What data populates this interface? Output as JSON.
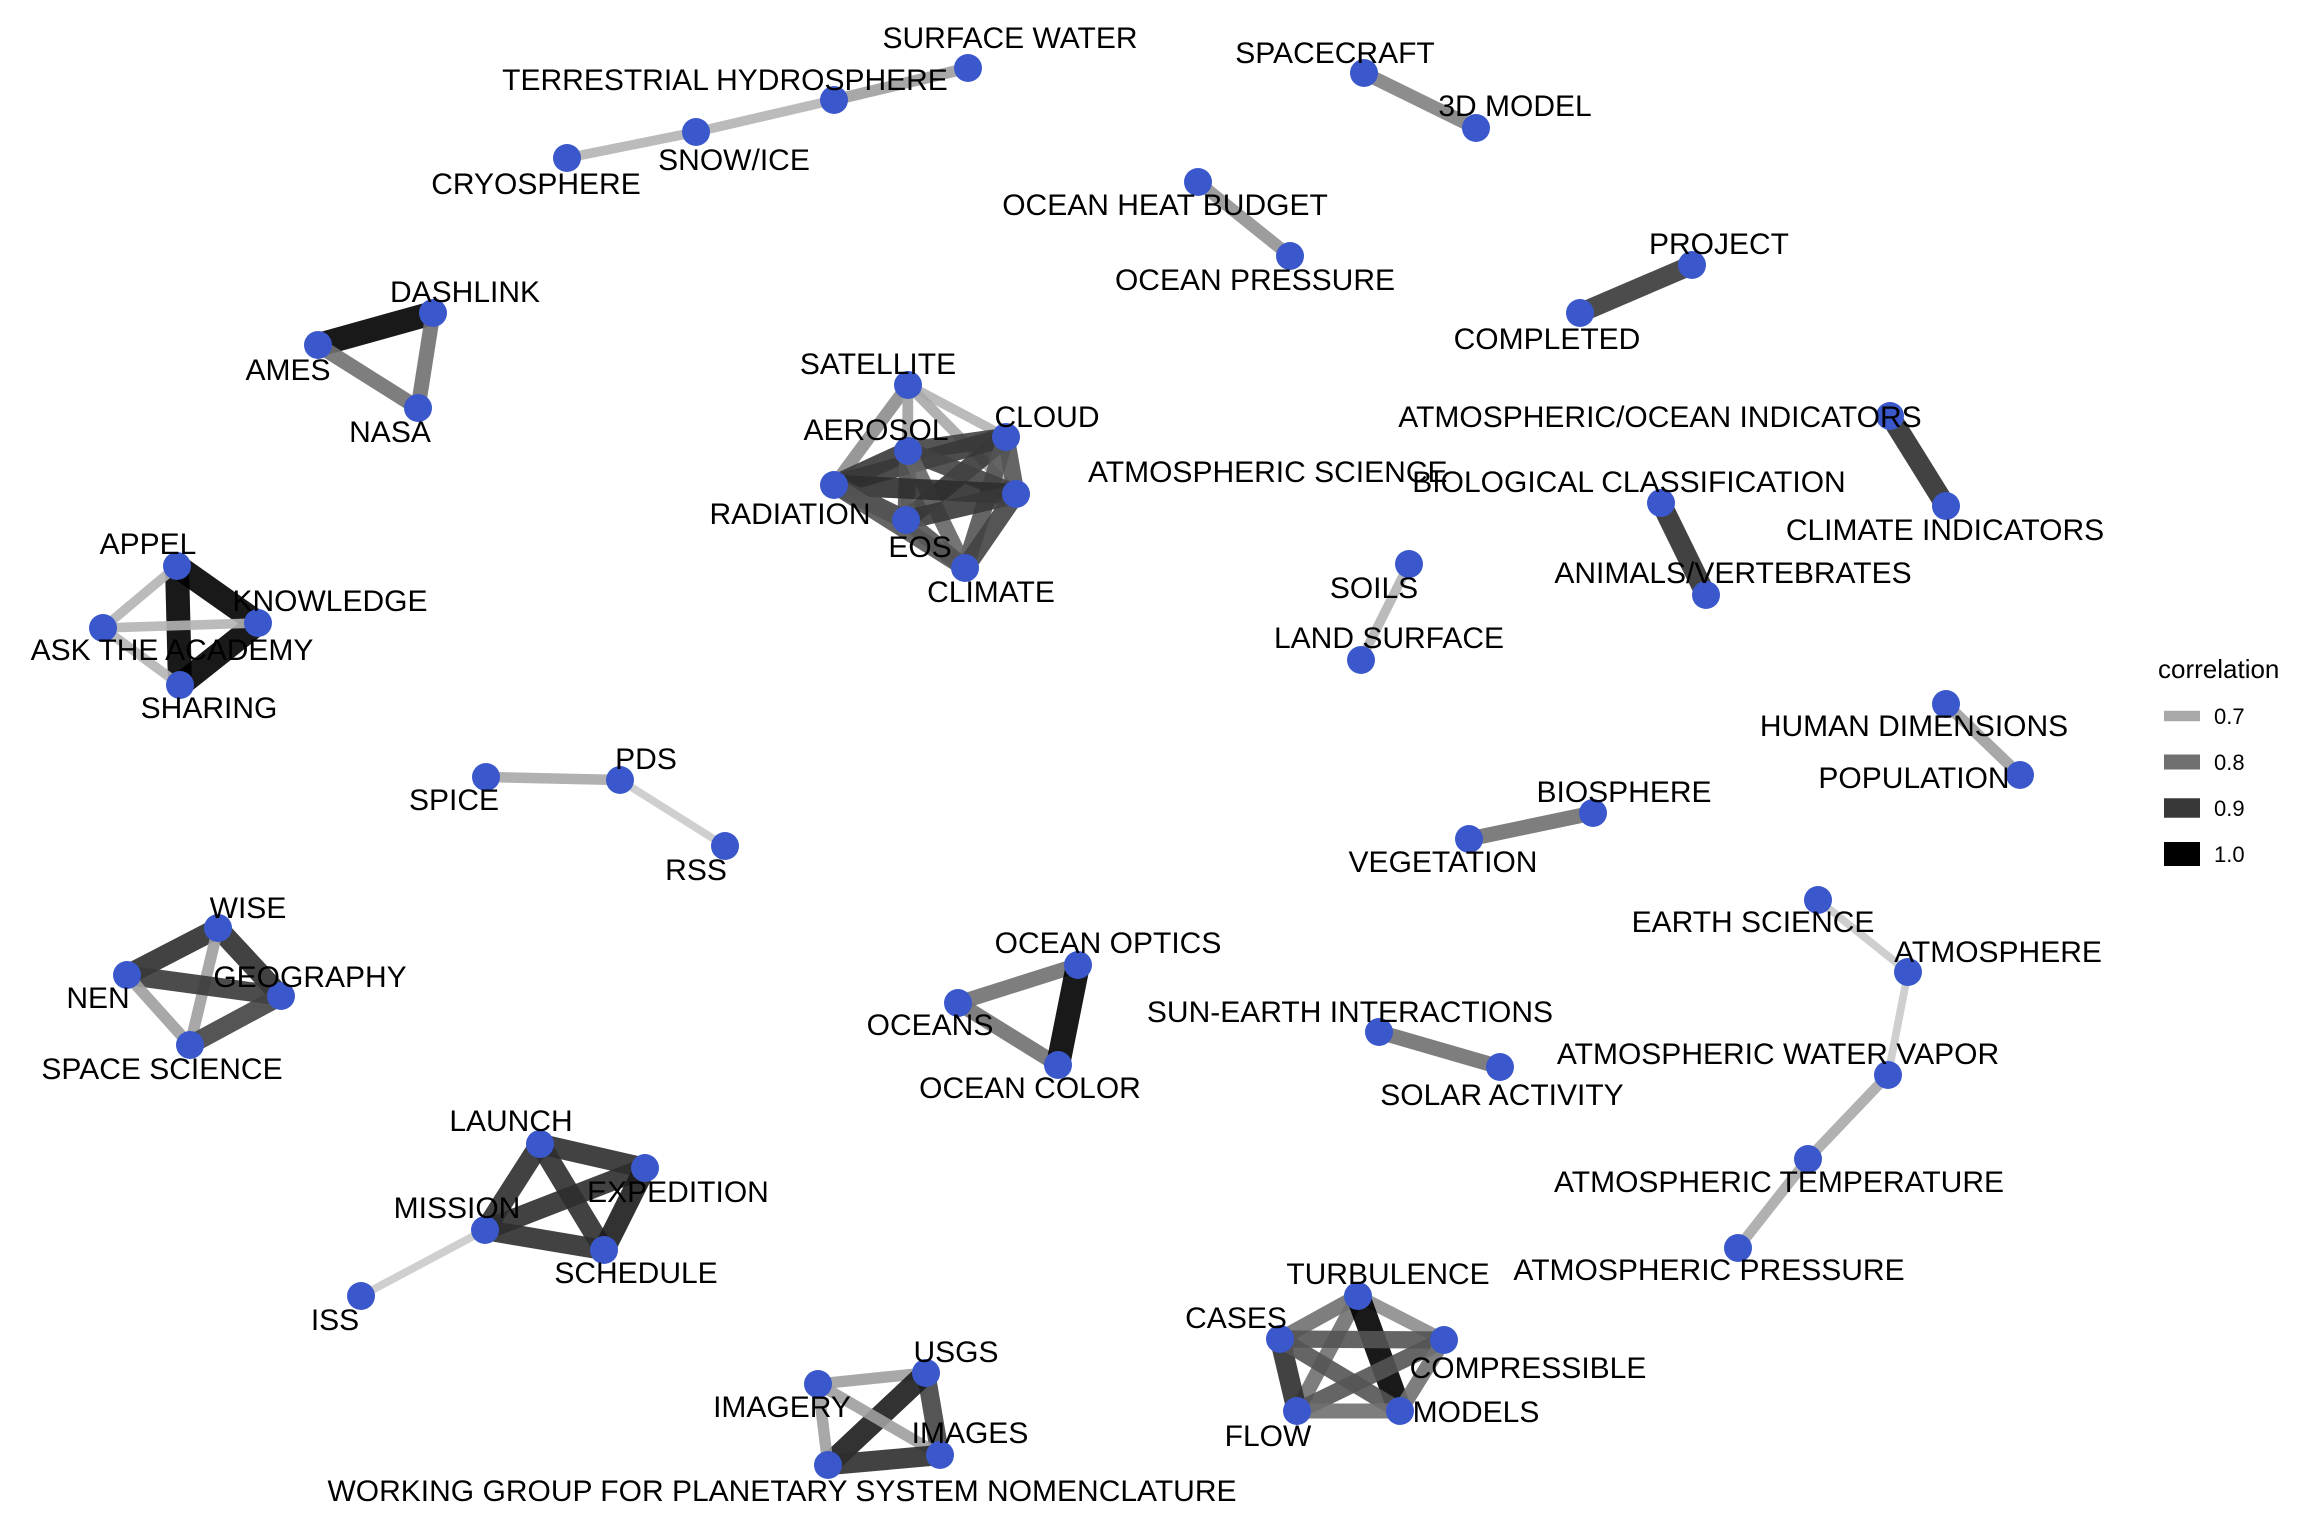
{
  "legend": {
    "title": "correlation",
    "entries": [
      {
        "label": "0.7",
        "value": 0.7
      },
      {
        "label": "0.8",
        "value": 0.8
      },
      {
        "label": "0.9",
        "value": 0.9
      },
      {
        "label": "1.0",
        "value": 1.0
      }
    ]
  },
  "colors": {
    "node": "#3b57cc",
    "edge_low": "#d9d9d9",
    "edge_high": "#000000"
  },
  "nodes": [
    {
      "id": "surface-water",
      "label": "SURFACE WATER"
    },
    {
      "id": "terrestrial-hydrosphere",
      "label": "TERRESTRIAL HYDROSPHERE"
    },
    {
      "id": "snow-ice",
      "label": "SNOW/ICE"
    },
    {
      "id": "cryosphere",
      "label": "CRYOSPHERE"
    },
    {
      "id": "spacecraft",
      "label": "SPACECRAFT"
    },
    {
      "id": "3d-model",
      "label": "3D MODEL"
    },
    {
      "id": "ocean-heat-budget",
      "label": "OCEAN HEAT BUDGET"
    },
    {
      "id": "ocean-pressure",
      "label": "OCEAN PRESSURE"
    },
    {
      "id": "project",
      "label": "PROJECT"
    },
    {
      "id": "completed",
      "label": "COMPLETED"
    },
    {
      "id": "dashlink",
      "label": "DASHLINK"
    },
    {
      "id": "ames",
      "label": "AMES"
    },
    {
      "id": "nasa",
      "label": "NASA"
    },
    {
      "id": "satellite",
      "label": "SATELLITE"
    },
    {
      "id": "cloud",
      "label": "CLOUD"
    },
    {
      "id": "aerosol",
      "label": "AEROSOL"
    },
    {
      "id": "atmospheric-science",
      "label": "ATMOSPHERIC SCIENCE"
    },
    {
      "id": "radiation",
      "label": "RADIATION"
    },
    {
      "id": "eos",
      "label": "EOS"
    },
    {
      "id": "climate",
      "label": "CLIMATE"
    },
    {
      "id": "atmospheric-ocean-indicators",
      "label": "ATMOSPHERIC/OCEAN INDICATORS"
    },
    {
      "id": "climate-indicators",
      "label": "CLIMATE INDICATORS"
    },
    {
      "id": "biological-classification",
      "label": "BIOLOGICAL CLASSIFICATION"
    },
    {
      "id": "animals-vertebrates",
      "label": "ANIMALS/VERTEBRATES"
    },
    {
      "id": "soils",
      "label": "SOILS"
    },
    {
      "id": "land-surface",
      "label": "LAND SURFACE"
    },
    {
      "id": "appel",
      "label": "APPEL"
    },
    {
      "id": "knowledge",
      "label": "KNOWLEDGE"
    },
    {
      "id": "ask-the-academy",
      "label": "ASK THE ACADEMY"
    },
    {
      "id": "sharing",
      "label": "SHARING"
    },
    {
      "id": "human-dimensions",
      "label": "HUMAN DIMENSIONS"
    },
    {
      "id": "population",
      "label": "POPULATION"
    },
    {
      "id": "pds",
      "label": "PDS"
    },
    {
      "id": "spice",
      "label": "SPICE"
    },
    {
      "id": "rss",
      "label": "RSS"
    },
    {
      "id": "biosphere",
      "label": "BIOSPHERE"
    },
    {
      "id": "vegetation",
      "label": "VEGETATION"
    },
    {
      "id": "wise",
      "label": "WISE"
    },
    {
      "id": "geography",
      "label": "GEOGRAPHY"
    },
    {
      "id": "nen",
      "label": "NEN"
    },
    {
      "id": "space-science",
      "label": "SPACE SCIENCE"
    },
    {
      "id": "earth-science",
      "label": "EARTH SCIENCE"
    },
    {
      "id": "atmosphere",
      "label": "ATMOSPHERE"
    },
    {
      "id": "ocean-optics",
      "label": "OCEAN OPTICS"
    },
    {
      "id": "oceans",
      "label": "OCEANS"
    },
    {
      "id": "ocean-color",
      "label": "OCEAN COLOR"
    },
    {
      "id": "sun-earth-interactions",
      "label": "SUN-EARTH INTERACTIONS"
    },
    {
      "id": "solar-activity",
      "label": "SOLAR ACTIVITY"
    },
    {
      "id": "atmospheric-water-vapor",
      "label": "ATMOSPHERIC WATER VAPOR"
    },
    {
      "id": "atmospheric-temperature",
      "label": "ATMOSPHERIC TEMPERATURE"
    },
    {
      "id": "atmospheric-pressure",
      "label": "ATMOSPHERIC PRESSURE"
    },
    {
      "id": "launch",
      "label": "LAUNCH"
    },
    {
      "id": "expedition",
      "label": "EXPEDITION"
    },
    {
      "id": "mission",
      "label": "MISSION"
    },
    {
      "id": "schedule",
      "label": "SCHEDULE"
    },
    {
      "id": "iss",
      "label": "ISS"
    },
    {
      "id": "turbulence",
      "label": "TURBULENCE"
    },
    {
      "id": "cases",
      "label": "CASES"
    },
    {
      "id": "compressible",
      "label": "COMPRESSIBLE"
    },
    {
      "id": "flow",
      "label": "FLOW"
    },
    {
      "id": "models",
      "label": "MODELS"
    },
    {
      "id": "usgs",
      "label": "USGS"
    },
    {
      "id": "imagery",
      "label": "IMAGERY"
    },
    {
      "id": "images",
      "label": "IMAGES"
    },
    {
      "id": "working-group",
      "label": "WORKING GROUP FOR PLANETARY SYSTEM NOMENCLATURE"
    }
  ],
  "edges": [
    {
      "source": "surface-water",
      "target": "terrestrial-hydrosphere",
      "correlation": 0.72
    },
    {
      "source": "terrestrial-hydrosphere",
      "target": "snow-ice",
      "correlation": 0.68
    },
    {
      "source": "snow-ice",
      "target": "cryosphere",
      "correlation": 0.68
    },
    {
      "source": "spacecraft",
      "target": "3d-model",
      "correlation": 0.77
    },
    {
      "source": "ocean-heat-budget",
      "target": "ocean-pressure",
      "correlation": 0.74
    },
    {
      "source": "project",
      "target": "completed",
      "correlation": 0.9
    },
    {
      "source": "dashlink",
      "target": "ames",
      "correlation": 1.0
    },
    {
      "source": "ames",
      "target": "nasa",
      "correlation": 0.8
    },
    {
      "source": "dashlink",
      "target": "nasa",
      "correlation": 0.8
    },
    {
      "source": "satellite",
      "target": "cloud",
      "correlation": 0.68
    },
    {
      "source": "satellite",
      "target": "aerosol",
      "correlation": 0.7
    },
    {
      "source": "satellite",
      "target": "radiation",
      "correlation": 0.75
    },
    {
      "source": "satellite",
      "target": "atmospheric-science",
      "correlation": 0.7
    },
    {
      "source": "satellite",
      "target": "eos",
      "correlation": 0.7
    },
    {
      "source": "cloud",
      "target": "aerosol",
      "correlation": 0.88
    },
    {
      "source": "cloud",
      "target": "radiation",
      "correlation": 0.9
    },
    {
      "source": "cloud",
      "target": "atmospheric-science",
      "correlation": 0.85
    },
    {
      "source": "cloud",
      "target": "eos",
      "correlation": 0.9
    },
    {
      "source": "cloud",
      "target": "climate",
      "correlation": 0.85
    },
    {
      "source": "aerosol",
      "target": "radiation",
      "correlation": 0.9
    },
    {
      "source": "aerosol",
      "target": "atmospheric-science",
      "correlation": 0.88
    },
    {
      "source": "aerosol",
      "target": "eos",
      "correlation": 0.85
    },
    {
      "source": "aerosol",
      "target": "climate",
      "correlation": 0.82
    },
    {
      "source": "radiation",
      "target": "atmospheric-science",
      "correlation": 0.92
    },
    {
      "source": "radiation",
      "target": "eos",
      "correlation": 0.88
    },
    {
      "source": "radiation",
      "target": "climate",
      "correlation": 0.85
    },
    {
      "source": "atmospheric-science",
      "target": "eos",
      "correlation": 0.9
    },
    {
      "source": "atmospheric-science",
      "target": "climate",
      "correlation": 0.88
    },
    {
      "source": "eos",
      "target": "climate",
      "correlation": 0.85
    },
    {
      "source": "atmospheric-ocean-indicators",
      "target": "climate-indicators",
      "correlation": 0.92
    },
    {
      "source": "biological-classification",
      "target": "animals-vertebrates",
      "correlation": 0.92
    },
    {
      "source": "soils",
      "target": "land-surface",
      "correlation": 0.68
    },
    {
      "source": "appel",
      "target": "knowledge",
      "correlation": 1.0
    },
    {
      "source": "appel",
      "target": "sharing",
      "correlation": 1.0
    },
    {
      "source": "knowledge",
      "target": "sharing",
      "correlation": 1.0
    },
    {
      "source": "appel",
      "target": "ask-the-academy",
      "correlation": 0.68
    },
    {
      "source": "ask-the-academy",
      "target": "knowledge",
      "correlation": 0.68
    },
    {
      "source": "ask-the-academy",
      "target": "sharing",
      "correlation": 0.68
    },
    {
      "source": "human-dimensions",
      "target": "population",
      "correlation": 0.72
    },
    {
      "source": "spice",
      "target": "pds",
      "correlation": 0.7
    },
    {
      "source": "pds",
      "target": "rss",
      "correlation": 0.64
    },
    {
      "source": "biosphere",
      "target": "vegetation",
      "correlation": 0.8
    },
    {
      "source": "wise",
      "target": "nen",
      "correlation": 0.92
    },
    {
      "source": "wise",
      "target": "geography",
      "correlation": 0.92
    },
    {
      "source": "wise",
      "target": "space-science",
      "correlation": 0.72
    },
    {
      "source": "nen",
      "target": "geography",
      "correlation": 0.9
    },
    {
      "source": "nen",
      "target": "space-science",
      "correlation": 0.72
    },
    {
      "source": "geography",
      "target": "space-science",
      "correlation": 0.88
    },
    {
      "source": "earth-science",
      "target": "atmosphere",
      "correlation": 0.64
    },
    {
      "source": "atmosphere",
      "target": "atmospheric-water-vapor",
      "correlation": 0.64
    },
    {
      "source": "atmospheric-water-vapor",
      "target": "atmospheric-temperature",
      "correlation": 0.7
    },
    {
      "source": "atmospheric-temperature",
      "target": "atmospheric-pressure",
      "correlation": 0.7
    },
    {
      "source": "ocean-optics",
      "target": "oceans",
      "correlation": 0.8
    },
    {
      "source": "oceans",
      "target": "ocean-color",
      "correlation": 0.8
    },
    {
      "source": "ocean-optics",
      "target": "ocean-color",
      "correlation": 1.0
    },
    {
      "source": "sun-earth-interactions",
      "target": "solar-activity",
      "correlation": 0.8
    },
    {
      "source": "launch",
      "target": "expedition",
      "correlation": 0.92
    },
    {
      "source": "launch",
      "target": "mission",
      "correlation": 0.92
    },
    {
      "source": "launch",
      "target": "schedule",
      "correlation": 0.92
    },
    {
      "source": "expedition",
      "target": "mission",
      "correlation": 0.92
    },
    {
      "source": "expedition",
      "target": "schedule",
      "correlation": 0.95
    },
    {
      "source": "mission",
      "target": "schedule",
      "correlation": 0.92
    },
    {
      "source": "mission",
      "target": "iss",
      "correlation": 0.64
    },
    {
      "source": "turbulence",
      "target": "cases",
      "correlation": 0.8
    },
    {
      "source": "turbulence",
      "target": "compressible",
      "correlation": 0.75
    },
    {
      "source": "turbulence",
      "target": "flow",
      "correlation": 0.8
    },
    {
      "source": "turbulence",
      "target": "models",
      "correlation": 1.0
    },
    {
      "source": "cases",
      "target": "compressible",
      "correlation": 0.85
    },
    {
      "source": "cases",
      "target": "flow",
      "correlation": 0.92
    },
    {
      "source": "cases",
      "target": "models",
      "correlation": 0.85
    },
    {
      "source": "compressible",
      "target": "flow",
      "correlation": 0.85
    },
    {
      "source": "compressible",
      "target": "models",
      "correlation": 0.8
    },
    {
      "source": "flow",
      "target": "models",
      "correlation": 0.8
    },
    {
      "source": "usgs",
      "target": "imagery",
      "correlation": 0.72
    },
    {
      "source": "usgs",
      "target": "images",
      "correlation": 0.88
    },
    {
      "source": "usgs",
      "target": "working-group",
      "correlation": 0.95
    },
    {
      "source": "imagery",
      "target": "images",
      "correlation": 0.72
    },
    {
      "source": "imagery",
      "target": "working-group",
      "correlation": 0.72
    },
    {
      "source": "images",
      "target": "working-group",
      "correlation": 0.92
    }
  ]
}
